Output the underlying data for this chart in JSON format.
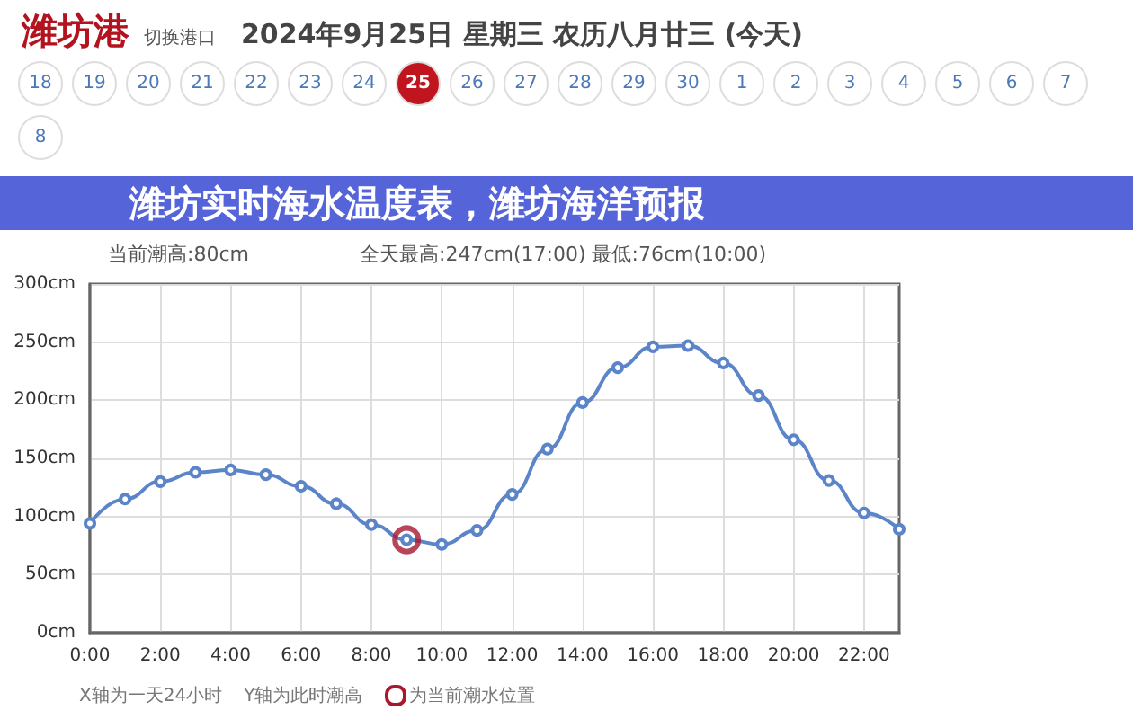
{
  "chart_data": {
    "type": "line",
    "title": "潍坊实时海水温度表，潍坊海洋预报",
    "subtitle": "2024年9月25日 星期三 农历八月廿三 (今天)",
    "annotations": [
      "潍坊港",
      "切换港口",
      "18",
      "19",
      "20",
      "21",
      "22",
      "23",
      "24",
      "25",
      "26",
      "27",
      "28",
      "29",
      "30",
      "1",
      "2",
      "3",
      "4",
      "5",
      "6",
      "7",
      "8",
      "当前潮高:80cm",
      "全天最高:247cm(17:00) 最低:76cm(10:00)",
      "X轴为一天24小时",
      "Y轴为此时潮高",
      "为当前潮水位置"
    ],
    "x": [
      0,
      1,
      2,
      3,
      4,
      5,
      6,
      7,
      8,
      9,
      10,
      11,
      12,
      13,
      14,
      15,
      16,
      17,
      18,
      19,
      20,
      21,
      22,
      23
    ],
    "series": [
      {
        "color": "#5b85c8",
        "values": [
          94,
          115,
          130,
          138,
          140,
          136,
          126,
          111,
          93,
          80,
          76,
          88,
          119,
          158,
          198,
          228,
          246,
          247,
          232,
          204,
          166,
          131,
          103,
          89
        ]
      },
      {
        "type": "scatter",
        "x": [
          9
        ],
        "values": [
          80
        ],
        "color": "#a8182e"
      }
    ],
    "xlim": [
      0,
      23
    ],
    "xticks": [
      {
        "value": 0,
        "label": "0:00"
      },
      {
        "value": 2,
        "label": "2:00"
      },
      {
        "value": 4,
        "label": "4:00"
      },
      {
        "value": 6,
        "label": "6:00"
      },
      {
        "value": 8,
        "label": "8:00"
      },
      {
        "value": 10,
        "label": "10:00"
      },
      {
        "value": 12,
        "label": "12:00"
      },
      {
        "value": 14,
        "label": "14:00"
      },
      {
        "value": 16,
        "label": "16:00"
      },
      {
        "value": 18,
        "label": "18:00"
      },
      {
        "value": 20,
        "label": "20:00"
      },
      {
        "value": 22,
        "label": "22:00"
      }
    ],
    "ylim": [
      0,
      300
    ],
    "yticks": [
      {
        "value": 0,
        "label": "0cm"
      },
      {
        "value": 50,
        "label": "50cm"
      },
      {
        "value": 100,
        "label": "100cm"
      },
      {
        "value": 150,
        "label": "150cm"
      },
      {
        "value": 200,
        "label": "200cm"
      },
      {
        "value": 250,
        "label": "250cm"
      },
      {
        "value": 300,
        "label": "300cm"
      }
    ],
    "grid": true,
    "marker": "circle",
    "line_style": "solid"
  }
}
